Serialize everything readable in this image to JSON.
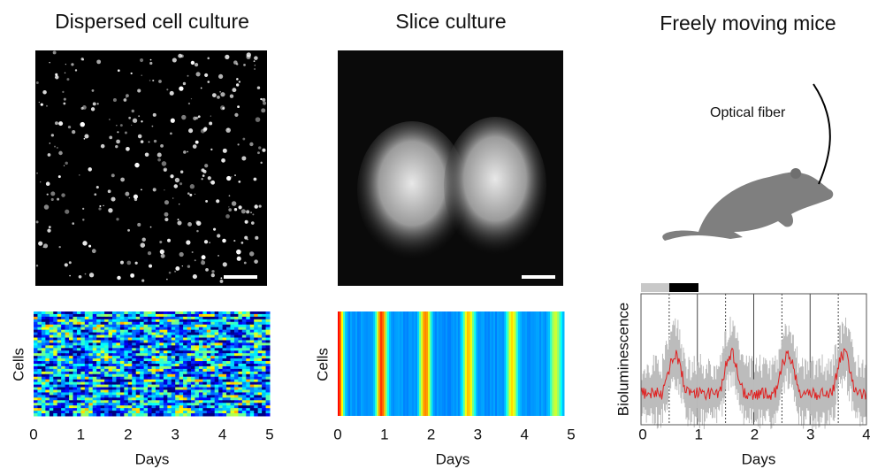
{
  "panels": [
    {
      "title": "Dispersed cell culture",
      "heatmap": {
        "y_label": "Cells",
        "x_label": "Days",
        "x_ticks": [
          0,
          1,
          2,
          3,
          4,
          5
        ]
      }
    },
    {
      "title": "Slice culture",
      "heatmap": {
        "y_label": "Cells",
        "x_label": "Days",
        "x_ticks": [
          0,
          1,
          2,
          3,
          4,
          5
        ]
      }
    },
    {
      "title": "Freely moving mice",
      "annotation": "Optical fiber",
      "plot": {
        "y_label": "Bioluminescence",
        "x_label": "Days",
        "x_ticks": [
          0,
          1,
          2,
          3,
          4
        ]
      }
    }
  ]
}
